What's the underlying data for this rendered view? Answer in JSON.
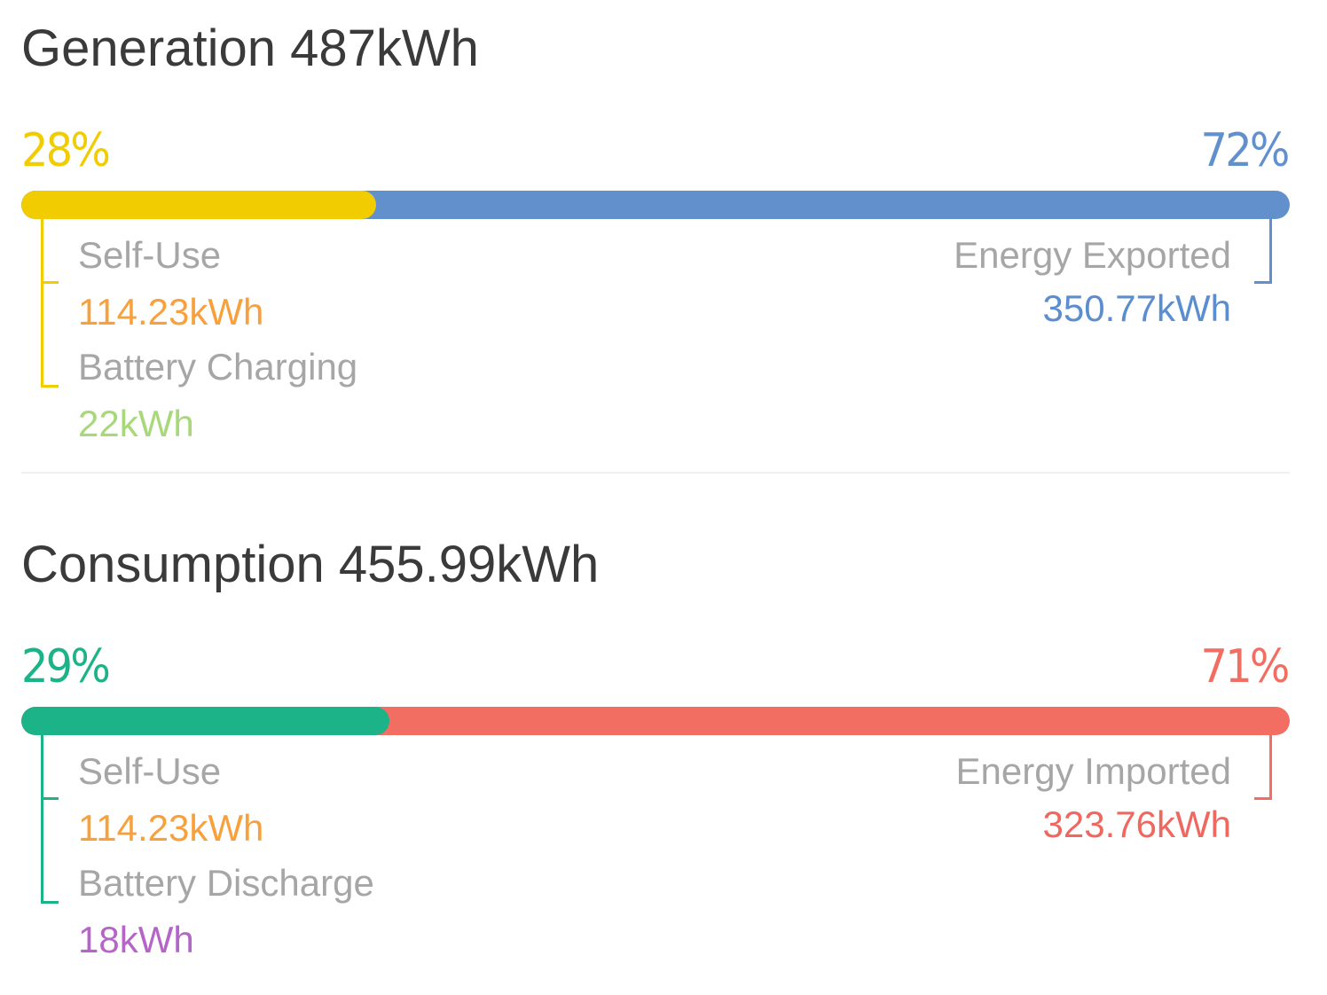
{
  "generation": {
    "title": "Generation 487kWh",
    "self_use_fraction": 0.28,
    "left_percent": "28%",
    "right_percent": "72%",
    "left_color": "#f0cc00",
    "right_color": "#6190cc",
    "self_use_label": "Self-Use",
    "self_use_value": "114.23kWh",
    "self_use_value_color": "#f7a03c",
    "battery_label": "Battery Charging",
    "battery_value": "22kWh",
    "battery_value_color": "#a8d87a",
    "export_label": "Energy Exported",
    "export_value": "350.77kWh",
    "export_value_color": "#5b8dcf"
  },
  "consumption": {
    "title": "Consumption 455.99kWh",
    "self_use_fraction": 0.29,
    "left_percent": "29%",
    "right_percent": "71%",
    "left_color": "#1db388",
    "right_color": "#f26e63",
    "self_use_label": "Self-Use",
    "self_use_value": "114.23kWh",
    "self_use_value_color": "#f7a03c",
    "battery_label": "Battery Discharge",
    "battery_value": "18kWh",
    "battery_value_color": "#b565c8",
    "import_label": "Energy Imported",
    "import_value": "323.76kWh",
    "import_value_color": "#ee6860"
  }
}
